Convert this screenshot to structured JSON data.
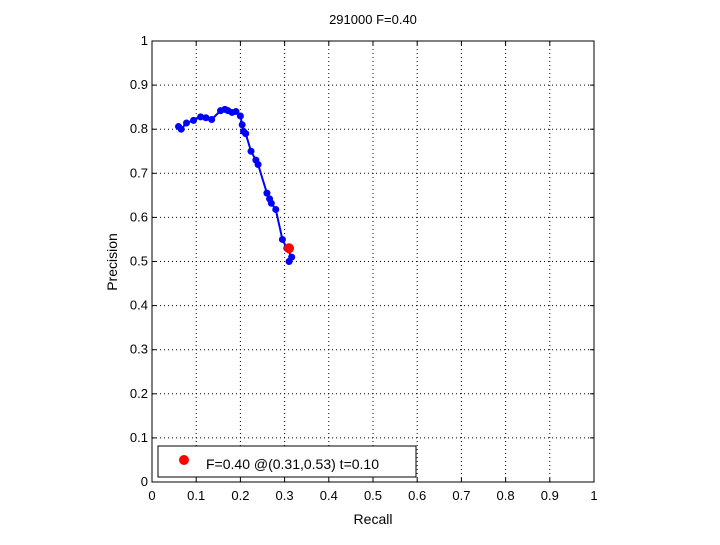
{
  "chart_data": {
    "type": "line",
    "title": "291000 F=0.40",
    "xlabel": "Recall",
    "ylabel": "Precision",
    "xlim": [
      0,
      1
    ],
    "ylim": [
      0,
      1
    ],
    "xticks": [
      "0",
      "0.1",
      "0.2",
      "0.3",
      "0.4",
      "0.5",
      "0.6",
      "0.7",
      "0.8",
      "0.9",
      "1"
    ],
    "yticks": [
      "0",
      "0.1",
      "0.2",
      "0.3",
      "0.4",
      "0.5",
      "0.6",
      "0.7",
      "0.8",
      "0.9",
      "1"
    ],
    "grid": true,
    "series": [
      {
        "color": "#0000ff",
        "points": [
          [
            0.06,
            0.806
          ],
          [
            0.066,
            0.8
          ],
          [
            0.078,
            0.814
          ],
          [
            0.094,
            0.82
          ],
          [
            0.11,
            0.828
          ],
          [
            0.122,
            0.826
          ],
          [
            0.135,
            0.822
          ],
          [
            0.155,
            0.842
          ],
          [
            0.165,
            0.845
          ],
          [
            0.172,
            0.842
          ],
          [
            0.181,
            0.838
          ],
          [
            0.19,
            0.84
          ],
          [
            0.2,
            0.83
          ],
          [
            0.204,
            0.81
          ],
          [
            0.207,
            0.795
          ],
          [
            0.212,
            0.79
          ],
          [
            0.224,
            0.75
          ],
          [
            0.235,
            0.73
          ],
          [
            0.24,
            0.72
          ],
          [
            0.26,
            0.655
          ],
          [
            0.266,
            0.642
          ],
          [
            0.27,
            0.632
          ],
          [
            0.28,
            0.618
          ],
          [
            0.295,
            0.55
          ],
          [
            0.305,
            0.53
          ],
          [
            0.316,
            0.51
          ],
          [
            0.31,
            0.5
          ]
        ]
      }
    ],
    "highlight": {
      "x": 0.31,
      "y": 0.53,
      "color": "#ff0000"
    },
    "legend": {
      "position": "bottom-left",
      "entries": [
        {
          "label": "F=0.40 @(0.31,0.53) t=0.10",
          "color": "#ff0000"
        }
      ]
    }
  }
}
